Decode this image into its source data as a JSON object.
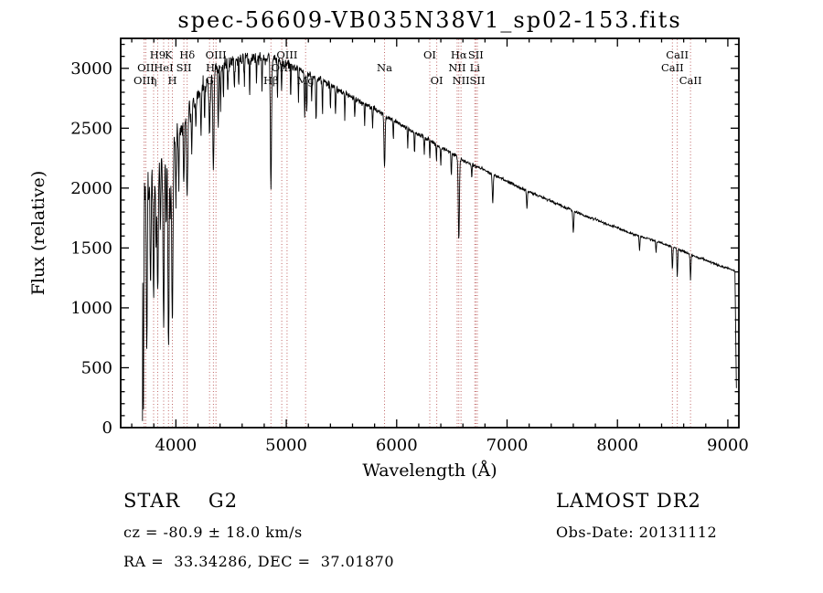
{
  "title": "spec-56609-VB035N38V1_sp02-153.fits",
  "footer": {
    "class": "STAR    G2",
    "survey": "LAMOST DR2",
    "cz": "cz = -80.9 ± 18.0 km/s",
    "obs_date": "Obs-Date: 20131112",
    "coords": "RA =  33.34286, DEC =  37.01870"
  },
  "chart_data": {
    "type": "line",
    "title": "spec-56609-VB035N38V1_sp02-153.fits",
    "xlabel": "Wavelength (Å)",
    "ylabel": "Flux (relative)",
    "xlim": [
      3500,
      9100
    ],
    "ylim": [
      0,
      3250
    ],
    "xticks": [
      4000,
      5000,
      6000,
      7000,
      8000,
      9000
    ],
    "yticks": [
      0,
      500,
      1000,
      1500,
      2000,
      2500,
      3000
    ],
    "x_minor_step": 200,
    "y_minor_step": 100,
    "grid": false,
    "legend": "none",
    "line_color": "#000000",
    "marker_line_color": "#c06666",
    "marker_label_color": "#4d1212",
    "continuum": [
      [
        3700,
        1950
      ],
      [
        3760,
        2050
      ],
      [
        3840,
        2200
      ],
      [
        3900,
        2300
      ],
      [
        3960,
        2370
      ],
      [
        4000,
        2420
      ],
      [
        4100,
        2600
      ],
      [
        4200,
        2780
      ],
      [
        4300,
        2920
      ],
      [
        4400,
        3000
      ],
      [
        4500,
        3050
      ],
      [
        4600,
        3080
      ],
      [
        4700,
        3100
      ],
      [
        4800,
        3080
      ],
      [
        4900,
        3070
      ],
      [
        5000,
        3040
      ],
      [
        5100,
        3010
      ],
      [
        5200,
        2960
      ],
      [
        5300,
        2910
      ],
      [
        5400,
        2860
      ],
      [
        5500,
        2810
      ],
      [
        5600,
        2760
      ],
      [
        5700,
        2710
      ],
      [
        5800,
        2660
      ],
      [
        5900,
        2600
      ],
      [
        6000,
        2550
      ],
      [
        6100,
        2500
      ],
      [
        6200,
        2450
      ],
      [
        6300,
        2400
      ],
      [
        6400,
        2340
      ],
      [
        6500,
        2290
      ],
      [
        6600,
        2230
      ],
      [
        6700,
        2190
      ],
      [
        6800,
        2150
      ],
      [
        6900,
        2100
      ],
      [
        7000,
        2060
      ],
      [
        7100,
        2010
      ],
      [
        7200,
        1970
      ],
      [
        7300,
        1930
      ],
      [
        7400,
        1890
      ],
      [
        7500,
        1850
      ],
      [
        7600,
        1810
      ],
      [
        7700,
        1770
      ],
      [
        7800,
        1740
      ],
      [
        7900,
        1700
      ],
      [
        8000,
        1670
      ],
      [
        8100,
        1630
      ],
      [
        8200,
        1600
      ],
      [
        8300,
        1570
      ],
      [
        8400,
        1540
      ],
      [
        8500,
        1510
      ],
      [
        8600,
        1470
      ],
      [
        8700,
        1430
      ],
      [
        8800,
        1400
      ],
      [
        8900,
        1360
      ],
      [
        9000,
        1330
      ],
      [
        9060,
        1310
      ]
    ],
    "absorption_features": [
      [
        3705,
        1900,
        5
      ],
      [
        3736,
        1300,
        6
      ],
      [
        3771,
        900,
        6
      ],
      [
        3798,
        1000,
        7
      ],
      [
        3820,
        700,
        5
      ],
      [
        3835,
        1100,
        7
      ],
      [
        3860,
        600,
        5
      ],
      [
        3889,
        1400,
        8
      ],
      [
        3912,
        700,
        5
      ],
      [
        3933,
        1680,
        8
      ],
      [
        3950,
        600,
        5
      ],
      [
        3968,
        1500,
        8
      ],
      [
        4000,
        500,
        5
      ],
      [
        4026,
        400,
        5
      ],
      [
        4072,
        500,
        6
      ],
      [
        4102,
        680,
        8
      ],
      [
        4144,
        350,
        5
      ],
      [
        4180,
        300,
        4
      ],
      [
        4227,
        420,
        5
      ],
      [
        4260,
        300,
        4
      ],
      [
        4305,
        480,
        8
      ],
      [
        4340,
        820,
        7
      ],
      [
        4383,
        480,
        5
      ],
      [
        4405,
        350,
        4
      ],
      [
        4430,
        280,
        4
      ],
      [
        4470,
        240,
        4
      ],
      [
        4530,
        280,
        4
      ],
      [
        4570,
        240,
        4
      ],
      [
        4620,
        200,
        4
      ],
      [
        4668,
        280,
        4
      ],
      [
        4730,
        220,
        4
      ],
      [
        4780,
        260,
        4
      ],
      [
        4861,
        1060,
        7
      ],
      [
        4920,
        320,
        4
      ],
      [
        4957,
        260,
        4
      ],
      [
        5040,
        260,
        4
      ],
      [
        5110,
        260,
        4
      ],
      [
        5167,
        380,
        5
      ],
      [
        5185,
        320,
        5
      ],
      [
        5230,
        220,
        4
      ],
      [
        5270,
        380,
        5
      ],
      [
        5328,
        280,
        4
      ],
      [
        5400,
        220,
        4
      ],
      [
        5446,
        220,
        4
      ],
      [
        5530,
        200,
        4
      ],
      [
        5620,
        180,
        4
      ],
      [
        5710,
        180,
        4
      ],
      [
        5782,
        160,
        4
      ],
      [
        5890,
        430,
        7
      ],
      [
        5970,
        140,
        4
      ],
      [
        6100,
        150,
        4
      ],
      [
        6162,
        180,
        4
      ],
      [
        6250,
        140,
        4
      ],
      [
        6300,
        150,
        4
      ],
      [
        6360,
        130,
        4
      ],
      [
        6400,
        150,
        4
      ],
      [
        6495,
        200,
        4
      ],
      [
        6563,
        700,
        7
      ],
      [
        6680,
        120,
        4
      ],
      [
        6870,
        240,
        6
      ],
      [
        7180,
        160,
        5
      ],
      [
        7600,
        180,
        6
      ],
      [
        8200,
        120,
        5
      ],
      [
        8350,
        100,
        4
      ],
      [
        8498,
        190,
        5
      ],
      [
        8542,
        230,
        5
      ],
      [
        8662,
        210,
        5
      ]
    ],
    "noise": {
      "seed": 1337,
      "base": 10,
      "blue_amp": 150,
      "decay": 1000
    },
    "edges": {
      "start": [
        3697,
        55
      ],
      "end": [
        9078,
        330
      ]
    },
    "spectral_lines": [
      {
        "wavelength": 3712,
        "label": "OIII",
        "row": 2
      },
      {
        "wavelength": 3727,
        "label": "OII",
        "row": 1
      },
      {
        "wavelength": 3798,
        "label": "η",
        "row": 2
      },
      {
        "wavelength": 3835,
        "label": "H9",
        "row": 0
      },
      {
        "wavelength": 3889,
        "label": "HeI",
        "row": 1
      },
      {
        "wavelength": 3933,
        "label": "K",
        "row": 0
      },
      {
        "wavelength": 3968,
        "label": "H",
        "row": 2
      },
      {
        "wavelength": 4072,
        "label": "SII",
        "row": 1
      },
      {
        "wavelength": 4102,
        "label": "Hδ",
        "row": 0
      },
      {
        "wavelength": 4305,
        "label": "G",
        "row": 2
      },
      {
        "wavelength": 4340,
        "label": "Hγ",
        "row": 1
      },
      {
        "wavelength": 4363,
        "label": "OIII",
        "row": 0
      },
      {
        "wavelength": 4861,
        "label": "Hβ",
        "row": 2
      },
      {
        "wavelength": 4959,
        "label": "OIII",
        "row": 1
      },
      {
        "wavelength": 5007,
        "label": "OIII",
        "row": 0
      },
      {
        "wavelength": 5175,
        "label": "Mg",
        "row": 2
      },
      {
        "wavelength": 5890,
        "label": "Na",
        "row": 1
      },
      {
        "wavelength": 6300,
        "label": "OI",
        "row": 0
      },
      {
        "wavelength": 6363,
        "label": "OI",
        "row": 2
      },
      {
        "wavelength": 6548,
        "label": "NII",
        "row": 1
      },
      {
        "wavelength": 6563,
        "label": "Hα",
        "row": 0
      },
      {
        "wavelength": 6583,
        "label": "NII",
        "row": 2
      },
      {
        "wavelength": 6708,
        "label": "Li",
        "row": 1
      },
      {
        "wavelength": 6717,
        "label": "SII",
        "row": 0
      },
      {
        "wavelength": 6731,
        "label": "SII",
        "row": 2
      },
      {
        "wavelength": 8498,
        "label": "CaII",
        "row": 1
      },
      {
        "wavelength": 8542,
        "label": "CaII",
        "row": 0
      },
      {
        "wavelength": 8662,
        "label": "CaII",
        "row": 2
      }
    ]
  }
}
